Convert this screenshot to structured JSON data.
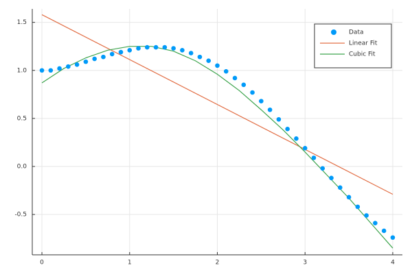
{
  "chart_data": {
    "type": "scatter",
    "xlim": [
      -0.11,
      4.11
    ],
    "ylim": [
      -0.92,
      1.64
    ],
    "xticks": [
      0,
      1,
      2,
      3,
      4
    ],
    "yticks": [
      {
        "value": -0.5,
        "label": "-0.5"
      },
      {
        "value": 0,
        "label": "0.0"
      },
      0.5,
      {
        "value": 1,
        "label": "1.0"
      },
      1.5
    ],
    "grid": true,
    "legend": "top-right",
    "series": [
      {
        "name": "Data",
        "type": "scatter",
        "color": "#009af9",
        "x": [
          0,
          0.1,
          0.2,
          0.3,
          0.4,
          0.5,
          0.6,
          0.7,
          0.8,
          0.9,
          1,
          1.1,
          1.2,
          1.3,
          1.4,
          1.5,
          1.6,
          1.7,
          1.8,
          1.9,
          2,
          2.1,
          2.2,
          2.3,
          2.4,
          2.5,
          2.6,
          2.7,
          2.8,
          2.9,
          3,
          3.1,
          3.2,
          3.3,
          3.4,
          3.5,
          3.6,
          3.7,
          3.8,
          3.9,
          4
        ],
        "values": [
          1.0,
          1.0,
          1.02,
          1.04,
          1.06,
          1.09,
          1.12,
          1.14,
          1.17,
          1.19,
          1.21,
          1.23,
          1.24,
          1.24,
          1.24,
          1.23,
          1.21,
          1.18,
          1.14,
          1.1,
          1.05,
          0.99,
          0.92,
          0.85,
          0.77,
          0.68,
          0.59,
          0.49,
          0.39,
          0.29,
          0.19,
          0.09,
          -0.02,
          -0.12,
          -0.22,
          -0.32,
          -0.42,
          -0.51,
          -0.59,
          -0.67,
          -0.74
        ]
      },
      {
        "name": "Linear Fit",
        "type": "line",
        "color": "#e26f46",
        "x": [
          0,
          4
        ],
        "values": [
          1.58,
          -0.29
        ]
      },
      {
        "name": "Cubic Fit",
        "type": "line",
        "color": "#3da44d",
        "x": [
          0,
          0.25,
          0.5,
          0.75,
          1,
          1.25,
          1.5,
          1.75,
          2,
          2.25,
          2.5,
          2.75,
          3,
          3.25,
          3.5,
          3.75,
          4
        ],
        "values": [
          0.87,
          1.02,
          1.13,
          1.21,
          1.25,
          1.25,
          1.2,
          1.1,
          0.96,
          0.79,
          0.59,
          0.38,
          0.15,
          -0.09,
          -0.33,
          -0.59,
          -0.85
        ]
      }
    ]
  }
}
